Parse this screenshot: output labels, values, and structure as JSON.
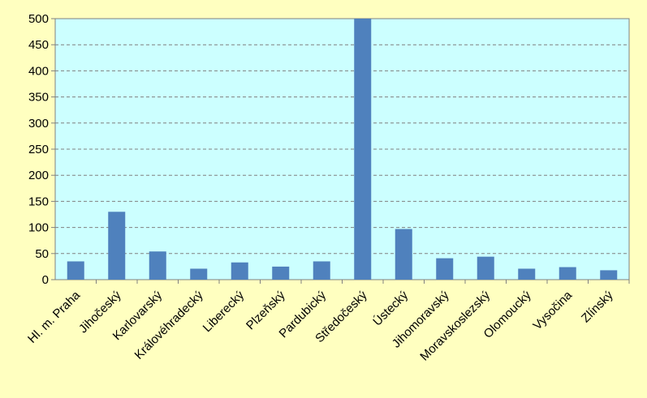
{
  "chart_data": {
    "type": "bar",
    "categories": [
      "Hl. m. Praha",
      "Jihočeský",
      "Karlovarský",
      "Královéhradecký",
      "Liberecký",
      "Plzeňský",
      "Pardubický",
      "Středočeský",
      "Ústecký",
      "Jihomoravský",
      "Moravskoslezský",
      "Olomoucký",
      "Vysočina",
      "Zlínský"
    ],
    "values": [
      35,
      130,
      54,
      21,
      33,
      25,
      35,
      500,
      97,
      41,
      44,
      21,
      24,
      18
    ],
    "color": "#4f81bd",
    "ylim": [
      0,
      500
    ],
    "yticks": [
      0,
      50,
      100,
      150,
      200,
      250,
      300,
      350,
      400,
      450,
      500
    ],
    "grid": true
  }
}
